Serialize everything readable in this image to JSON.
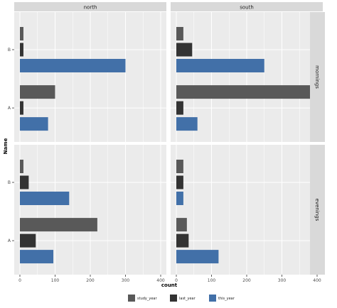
{
  "chart_data": {
    "type": "bar",
    "orientation": "horizontal",
    "facet_columns": [
      "north",
      "south"
    ],
    "facet_rows": [
      "mornings",
      "evenings"
    ],
    "categories": [
      "A",
      "B"
    ],
    "series_order": [
      "study_year",
      "last_year",
      "this_year"
    ],
    "colors": {
      "study_year": "#595959",
      "last_year": "#333333",
      "this_year": "#4270A8",
      "panel_bg": "#EBEBEB",
      "strip_bg": "#D9D9D9",
      "grid": "#FFFFFF"
    },
    "xlabel": "count",
    "ylabel": "Name",
    "xlim": [
      0,
      410
    ],
    "xticks": [
      0,
      100,
      200,
      300,
      400
    ],
    "xtick_labels": [
      "0",
      "100",
      "200",
      "300",
      "400"
    ],
    "grid": true,
    "legend_position": "bottom",
    "legend": [
      {
        "key": "study_year",
        "label": "study_year"
      },
      {
        "key": "last_year",
        "label": "last_year"
      },
      {
        "key": "this_year",
        "label": "this_year"
      }
    ],
    "panels": [
      {
        "column": "north",
        "row": "mornings",
        "values": {
          "A": {
            "study_year": 100,
            "last_year": 10,
            "this_year": 80
          },
          "B": {
            "study_year": 10,
            "last_year": 10,
            "this_year": 300
          }
        }
      },
      {
        "column": "south",
        "row": "mornings",
        "values": {
          "A": {
            "study_year": 400,
            "last_year": 20,
            "this_year": 60
          },
          "B": {
            "study_year": 20,
            "last_year": 45,
            "this_year": 250
          }
        }
      },
      {
        "column": "north",
        "row": "evenings",
        "values": {
          "A": {
            "study_year": 220,
            "last_year": 45,
            "this_year": 95
          },
          "B": {
            "study_year": 10,
            "last_year": 25,
            "this_year": 140
          }
        }
      },
      {
        "column": "south",
        "row": "evenings",
        "values": {
          "A": {
            "study_year": 30,
            "last_year": 35,
            "this_year": 120
          },
          "B": {
            "study_year": 20,
            "last_year": 20,
            "this_year": 20
          }
        }
      }
    ]
  }
}
